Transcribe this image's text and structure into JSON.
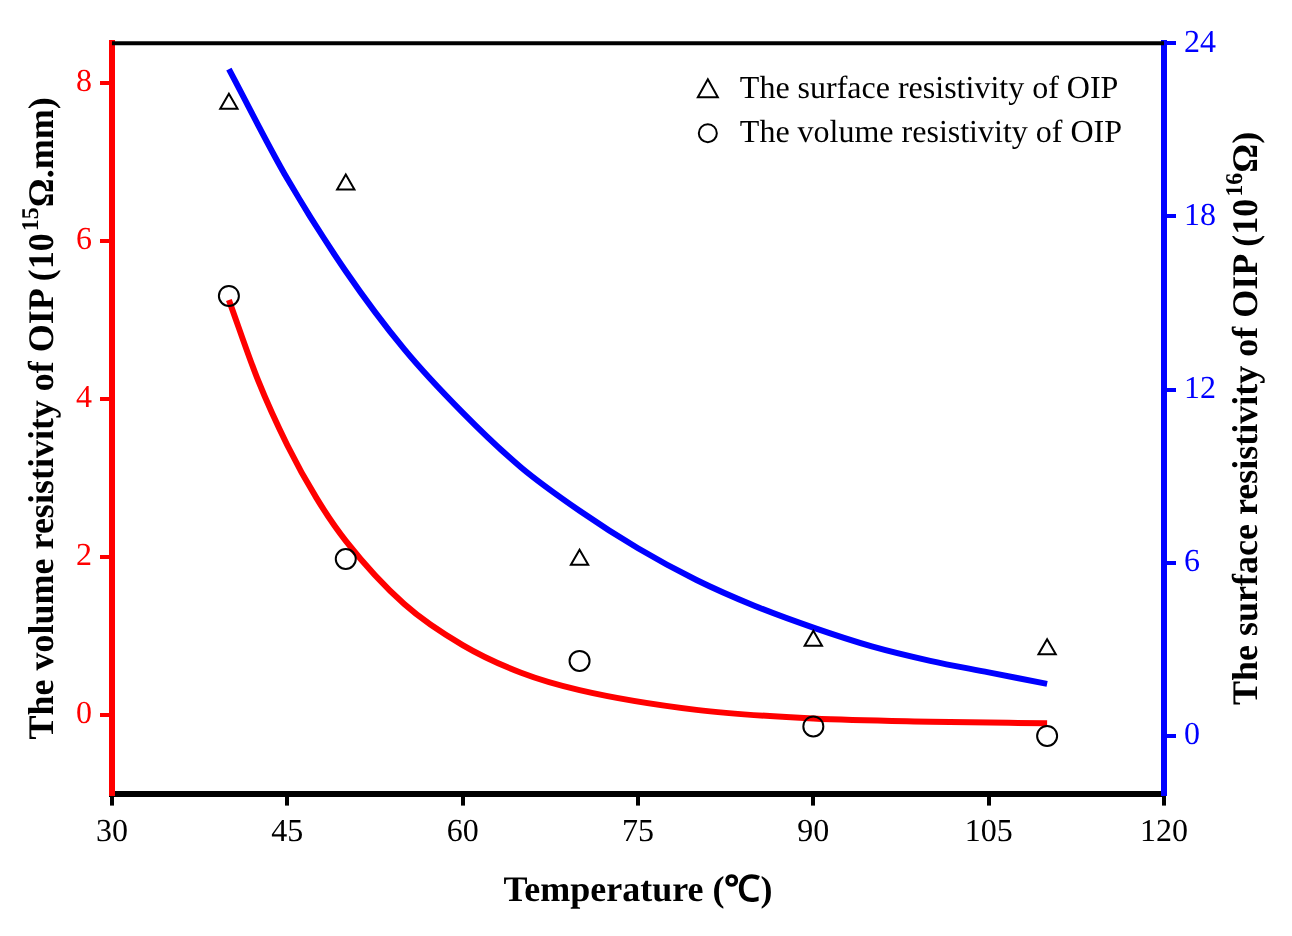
{
  "chart_data": {
    "type": "scatter",
    "xlabel": "Temperature (℃)",
    "ylabel": "The volume resistivity of OIP (10$^{15}$Ω.mm)",
    "y2label": "The surface resistivity of OIP (10$^{16}$Ω)",
    "xlim": [
      30,
      120
    ],
    "xticks": [
      30,
      45,
      60,
      75,
      90,
      105,
      120
    ],
    "ylim": [
      -1,
      8.5
    ],
    "yticks": [
      0,
      2,
      4,
      6,
      8
    ],
    "y2lim": [
      -2,
      24
    ],
    "y2ticks": [
      0,
      6,
      12,
      18,
      24
    ],
    "grid": false,
    "legend": "top right",
    "series": [
      {
        "name": "The surface resistivity of OIP",
        "type": "scatter",
        "marker": "triangle",
        "axis": "y2",
        "color": "#000000",
        "x": [
          40,
          50,
          70,
          90,
          110
        ],
        "values": [
          21.9,
          19.1,
          6.1,
          3.3,
          3.0
        ]
      },
      {
        "name": "The volume resistivity of OIP",
        "type": "scatter",
        "marker": "circle",
        "axis": "y",
        "color": "#000000",
        "x": [
          40,
          50,
          70,
          90,
          110
        ],
        "values": [
          5.3,
          1.97,
          0.68,
          -0.15,
          -0.27
        ]
      },
      {
        "type": "line",
        "marker": "none",
        "axis": "y",
        "color": "#ff0000",
        "x": [
          40,
          42.5,
          45,
          47.5,
          50,
          55,
          60,
          65,
          70,
          80,
          90,
          100,
          110
        ],
        "values": [
          5.25,
          4.23,
          3.41,
          2.74,
          2.2,
          1.4,
          0.88,
          0.53,
          0.31,
          0.06,
          -0.05,
          -0.09,
          -0.11
        ]
      },
      {
        "type": "line",
        "marker": "none",
        "axis": "y2",
        "color": "#0000ff",
        "x": [
          40,
          45,
          50,
          55,
          60,
          65,
          70,
          75,
          80,
          85,
          90,
          95,
          100,
          105,
          110
        ],
        "values": [
          23.1,
          19.3,
          16.1,
          13.4,
          11.2,
          9.3,
          7.8,
          6.5,
          5.4,
          4.5,
          3.75,
          3.1,
          2.6,
          2.2,
          1.8
        ]
      }
    ]
  }
}
